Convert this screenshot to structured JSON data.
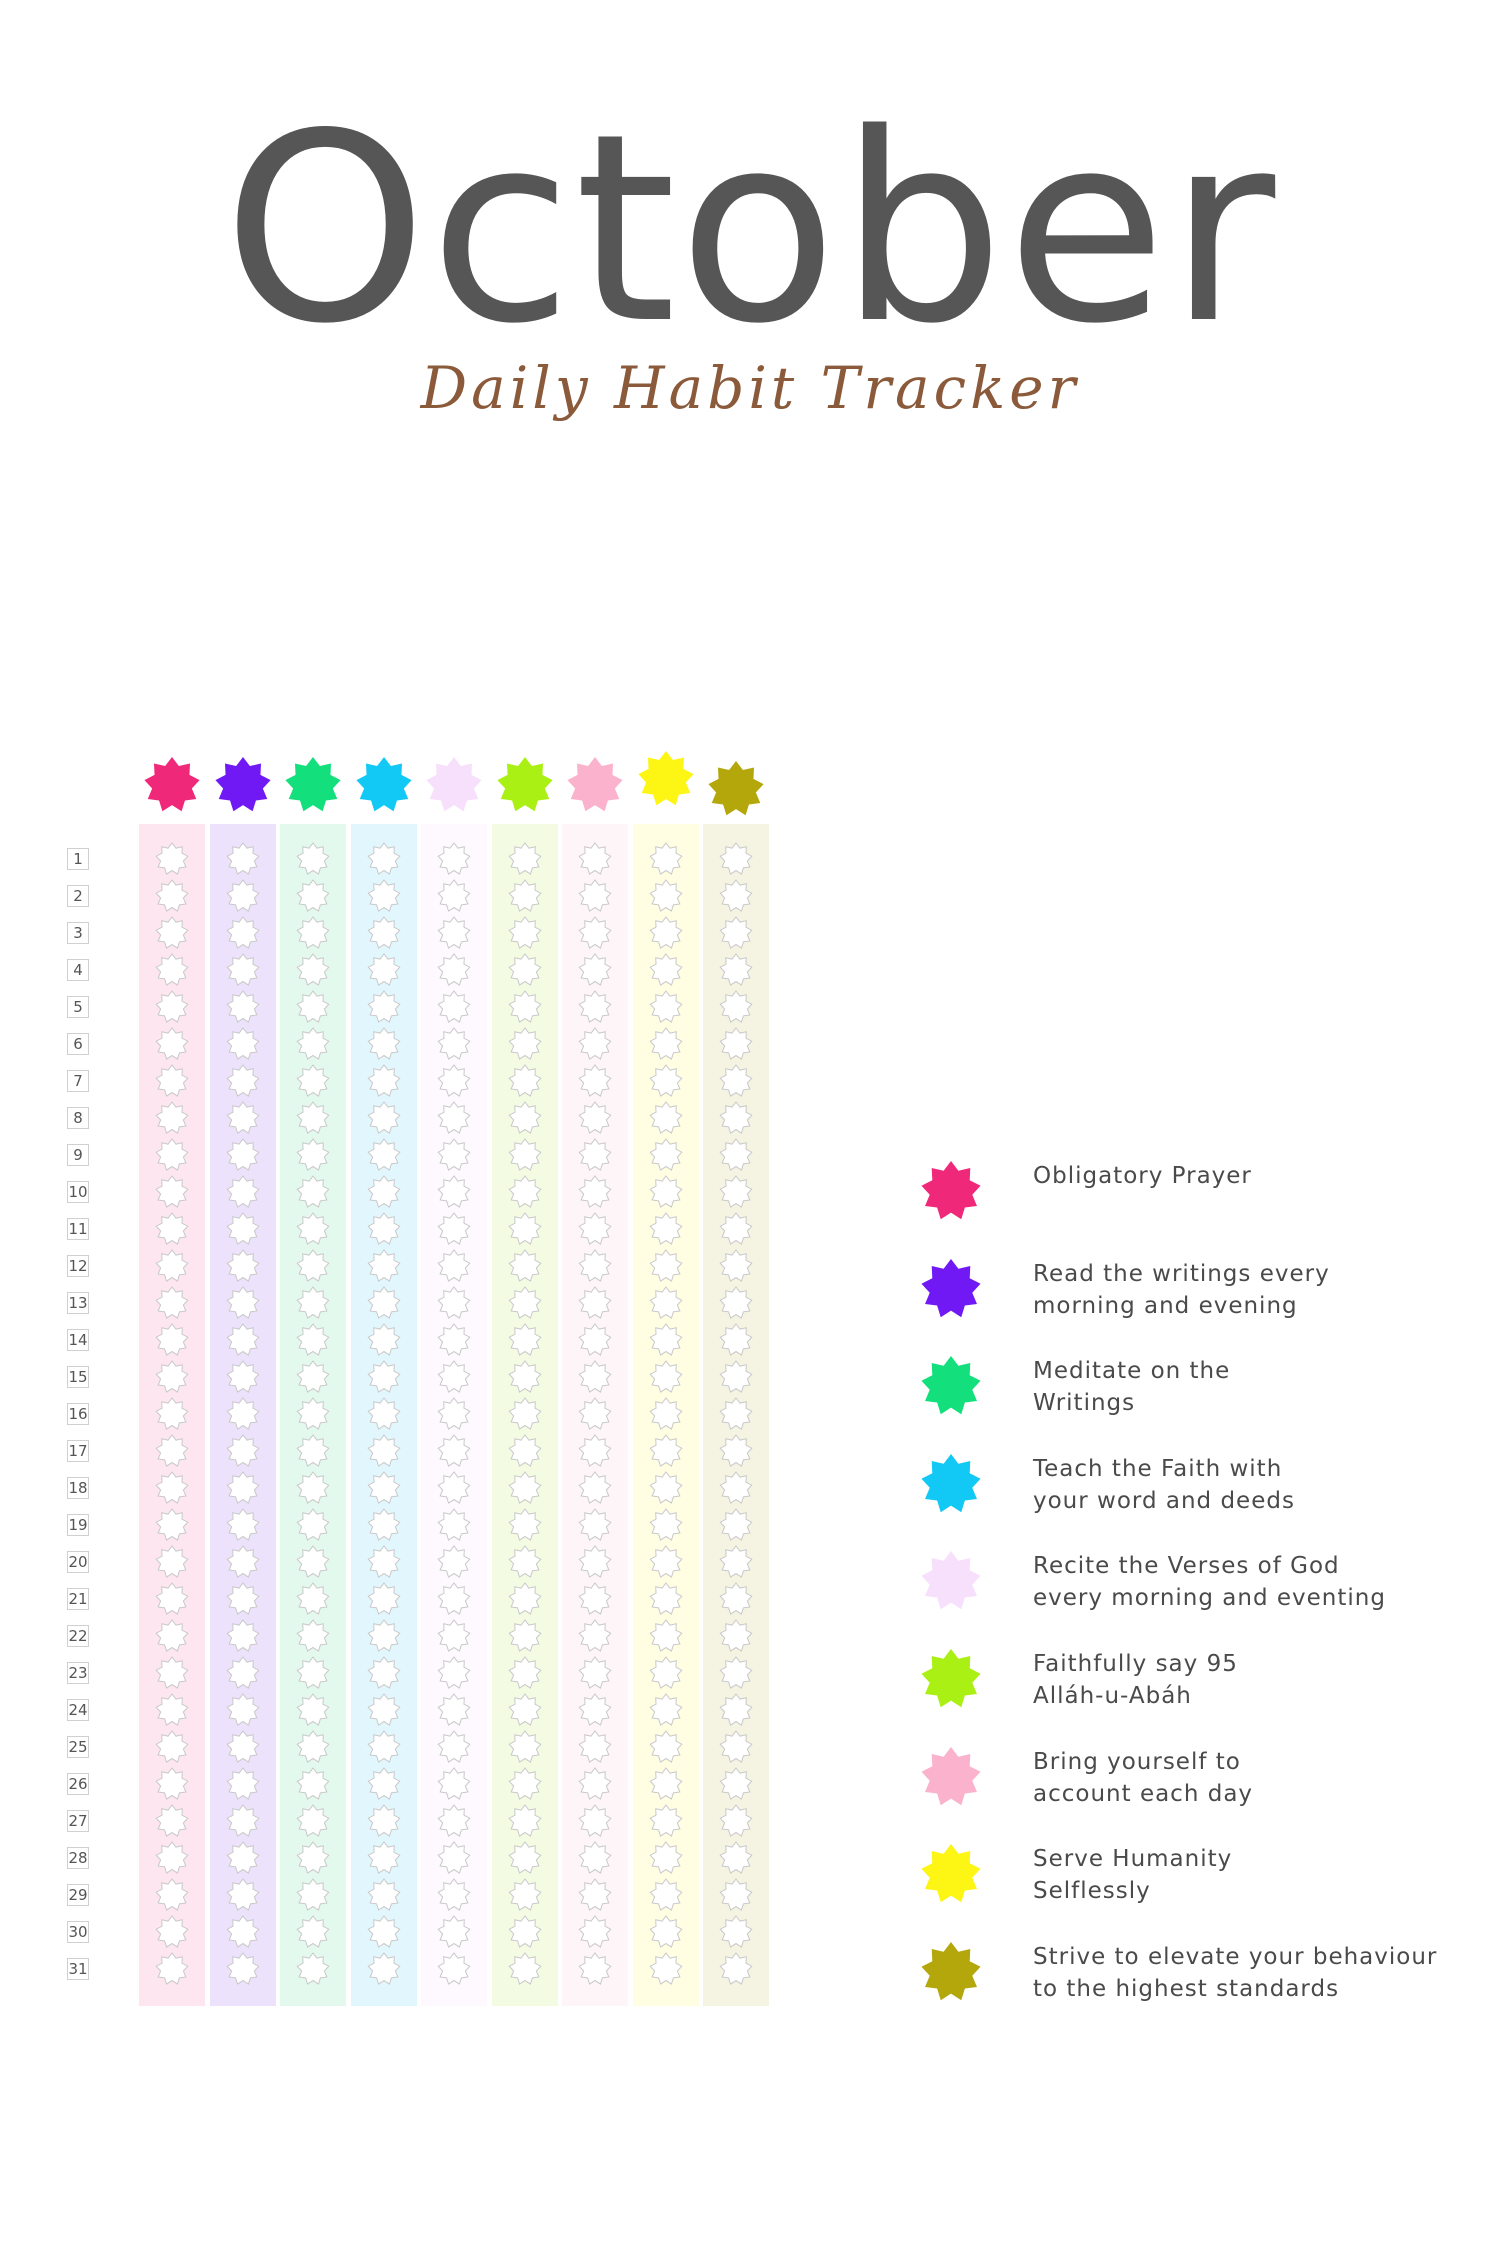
{
  "header": {
    "title": "October",
    "subtitle": "Daily Habit Tracker"
  },
  "days": [
    "1",
    "2",
    "3",
    "4",
    "5",
    "6",
    "7",
    "8",
    "9",
    "10",
    "11",
    "12",
    "13",
    "14",
    "15",
    "16",
    "17",
    "18",
    "19",
    "20",
    "21",
    "22",
    "23",
    "24",
    "25",
    "26",
    "27",
    "28",
    "29",
    "30",
    "31"
  ],
  "habits": [
    {
      "label": "Obligatory Prayer",
      "color": "#f0287a",
      "column_tint": "#fde6ef"
    },
    {
      "label": "Read the writings every\nmorning and evening",
      "color": "#7119f5",
      "column_tint": "#ede2fb"
    },
    {
      "label": "Meditate on the\nWritings",
      "color": "#14df7d",
      "column_tint": "#e3f9ee"
    },
    {
      "label": "Teach the Faith with\nyour word and deeds",
      "color": "#12c8f5",
      "column_tint": "#e2f7fd"
    },
    {
      "label": "Recite the Verses of God\nevery morning and eventing",
      "color": "#f7e0fb",
      "column_tint": "#fdf9fe"
    },
    {
      "label": "Faithfully say 95\nAlláh-u-Abáh",
      "color": "#aaf014",
      "column_tint": "#f4fbe3"
    },
    {
      "label": "Bring yourself to\naccount each day",
      "color": "#fbb3cd",
      "column_tint": "#fef5f9"
    },
    {
      "label": "Serve Humanity\nSelflessly",
      "color": "#fdf514",
      "column_tint": "#fffde2"
    },
    {
      "label": "Strive to elevate your behaviour\nto the highest standards",
      "color": "#b4a70b",
      "column_tint": "#f5f4e2"
    }
  ],
  "icons": {
    "habit_marker": "nine-point-star-icon",
    "day_cell": "star-outline-icon"
  }
}
